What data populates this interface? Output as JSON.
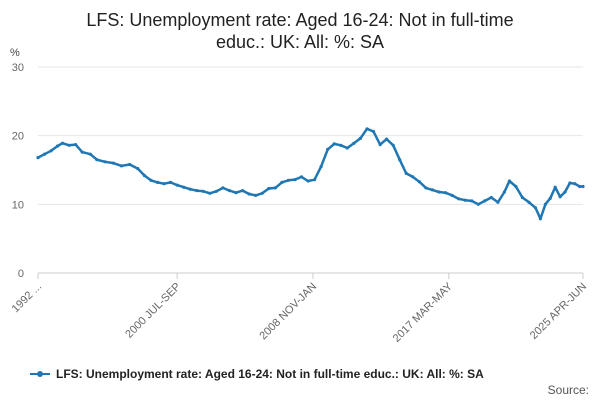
{
  "chart_data": {
    "type": "line",
    "title_lines": [
      "LFS: Unemployment rate: Aged 16-24: Not in full-time",
      "educ.: UK: All: %: SA"
    ],
    "unit_label": "%",
    "ylim": [
      0,
      30
    ],
    "yticks": [
      0,
      10,
      20,
      30
    ],
    "y_tick_labels": [
      "0",
      "10",
      "20",
      "30"
    ],
    "x_tick_labels": [
      "1992 ...",
      "2000 JUL-SEP",
      "2008 NOV-JAN",
      "2017 MAR-MAY",
      "2025 APR-JUN"
    ],
    "x_tick_years": [
      1992.1,
      2000.6,
      2008.9,
      2017.2,
      2025.4
    ],
    "xlim": [
      1992.1,
      2025.4
    ],
    "grid": true,
    "legend_position": "bottom",
    "series": [
      {
        "name": "LFS: Unemployment rate: Aged 16-24: Not in full-time educ.: UK: All: %: SA",
        "color": "#1f77b4",
        "points": [
          [
            1992.1,
            16.8
          ],
          [
            1992.5,
            17.3
          ],
          [
            1992.9,
            17.8
          ],
          [
            1993.3,
            18.5
          ],
          [
            1993.6,
            18.9
          ],
          [
            1994.0,
            18.6
          ],
          [
            1994.4,
            18.7
          ],
          [
            1994.8,
            17.6
          ],
          [
            1995.3,
            17.3
          ],
          [
            1995.7,
            16.5
          ],
          [
            1996.2,
            16.2
          ],
          [
            1996.7,
            16.0
          ],
          [
            1997.2,
            15.6
          ],
          [
            1997.7,
            15.8
          ],
          [
            1998.2,
            15.2
          ],
          [
            1998.6,
            14.2
          ],
          [
            1999.0,
            13.5
          ],
          [
            1999.4,
            13.2
          ],
          [
            1999.8,
            13.0
          ],
          [
            2000.2,
            13.2
          ],
          [
            2000.6,
            12.8
          ],
          [
            2001.0,
            12.5
          ],
          [
            2001.4,
            12.2
          ],
          [
            2001.8,
            12.0
          ],
          [
            2002.2,
            11.9
          ],
          [
            2002.6,
            11.6
          ],
          [
            2003.0,
            11.9
          ],
          [
            2003.4,
            12.4
          ],
          [
            2003.8,
            12.0
          ],
          [
            2004.2,
            11.7
          ],
          [
            2004.6,
            12.0
          ],
          [
            2005.0,
            11.5
          ],
          [
            2005.4,
            11.3
          ],
          [
            2005.8,
            11.6
          ],
          [
            2006.2,
            12.3
          ],
          [
            2006.6,
            12.4
          ],
          [
            2007.0,
            13.2
          ],
          [
            2007.4,
            13.5
          ],
          [
            2007.8,
            13.6
          ],
          [
            2008.2,
            14.0
          ],
          [
            2008.6,
            13.4
          ],
          [
            2009.0,
            13.6
          ],
          [
            2009.4,
            15.5
          ],
          [
            2009.8,
            18.0
          ],
          [
            2010.2,
            18.8
          ],
          [
            2010.6,
            18.6
          ],
          [
            2011.0,
            18.2
          ],
          [
            2011.4,
            18.9
          ],
          [
            2011.8,
            19.6
          ],
          [
            2012.2,
            21.0
          ],
          [
            2012.6,
            20.6
          ],
          [
            2013.0,
            18.7
          ],
          [
            2013.4,
            19.5
          ],
          [
            2013.8,
            18.6
          ],
          [
            2014.2,
            16.5
          ],
          [
            2014.6,
            14.5
          ],
          [
            2015.0,
            14.0
          ],
          [
            2015.4,
            13.3
          ],
          [
            2015.8,
            12.4
          ],
          [
            2016.2,
            12.1
          ],
          [
            2016.6,
            11.8
          ],
          [
            2017.0,
            11.7
          ],
          [
            2017.4,
            11.3
          ],
          [
            2017.8,
            10.8
          ],
          [
            2018.2,
            10.6
          ],
          [
            2018.6,
            10.5
          ],
          [
            2019.0,
            10.0
          ],
          [
            2019.4,
            10.5
          ],
          [
            2019.8,
            11.0
          ],
          [
            2020.2,
            10.3
          ],
          [
            2020.6,
            11.8
          ],
          [
            2020.9,
            13.4
          ],
          [
            2021.3,
            12.6
          ],
          [
            2021.7,
            11.0
          ],
          [
            2022.1,
            10.3
          ],
          [
            2022.5,
            9.5
          ],
          [
            2022.8,
            7.9
          ],
          [
            2023.1,
            10.0
          ],
          [
            2023.4,
            10.9
          ],
          [
            2023.7,
            12.5
          ],
          [
            2024.0,
            11.1
          ],
          [
            2024.3,
            11.8
          ],
          [
            2024.6,
            13.1
          ],
          [
            2024.9,
            13.0
          ],
          [
            2025.2,
            12.6
          ],
          [
            2025.4,
            12.6
          ]
        ]
      }
    ]
  },
  "source_label": "Source:"
}
